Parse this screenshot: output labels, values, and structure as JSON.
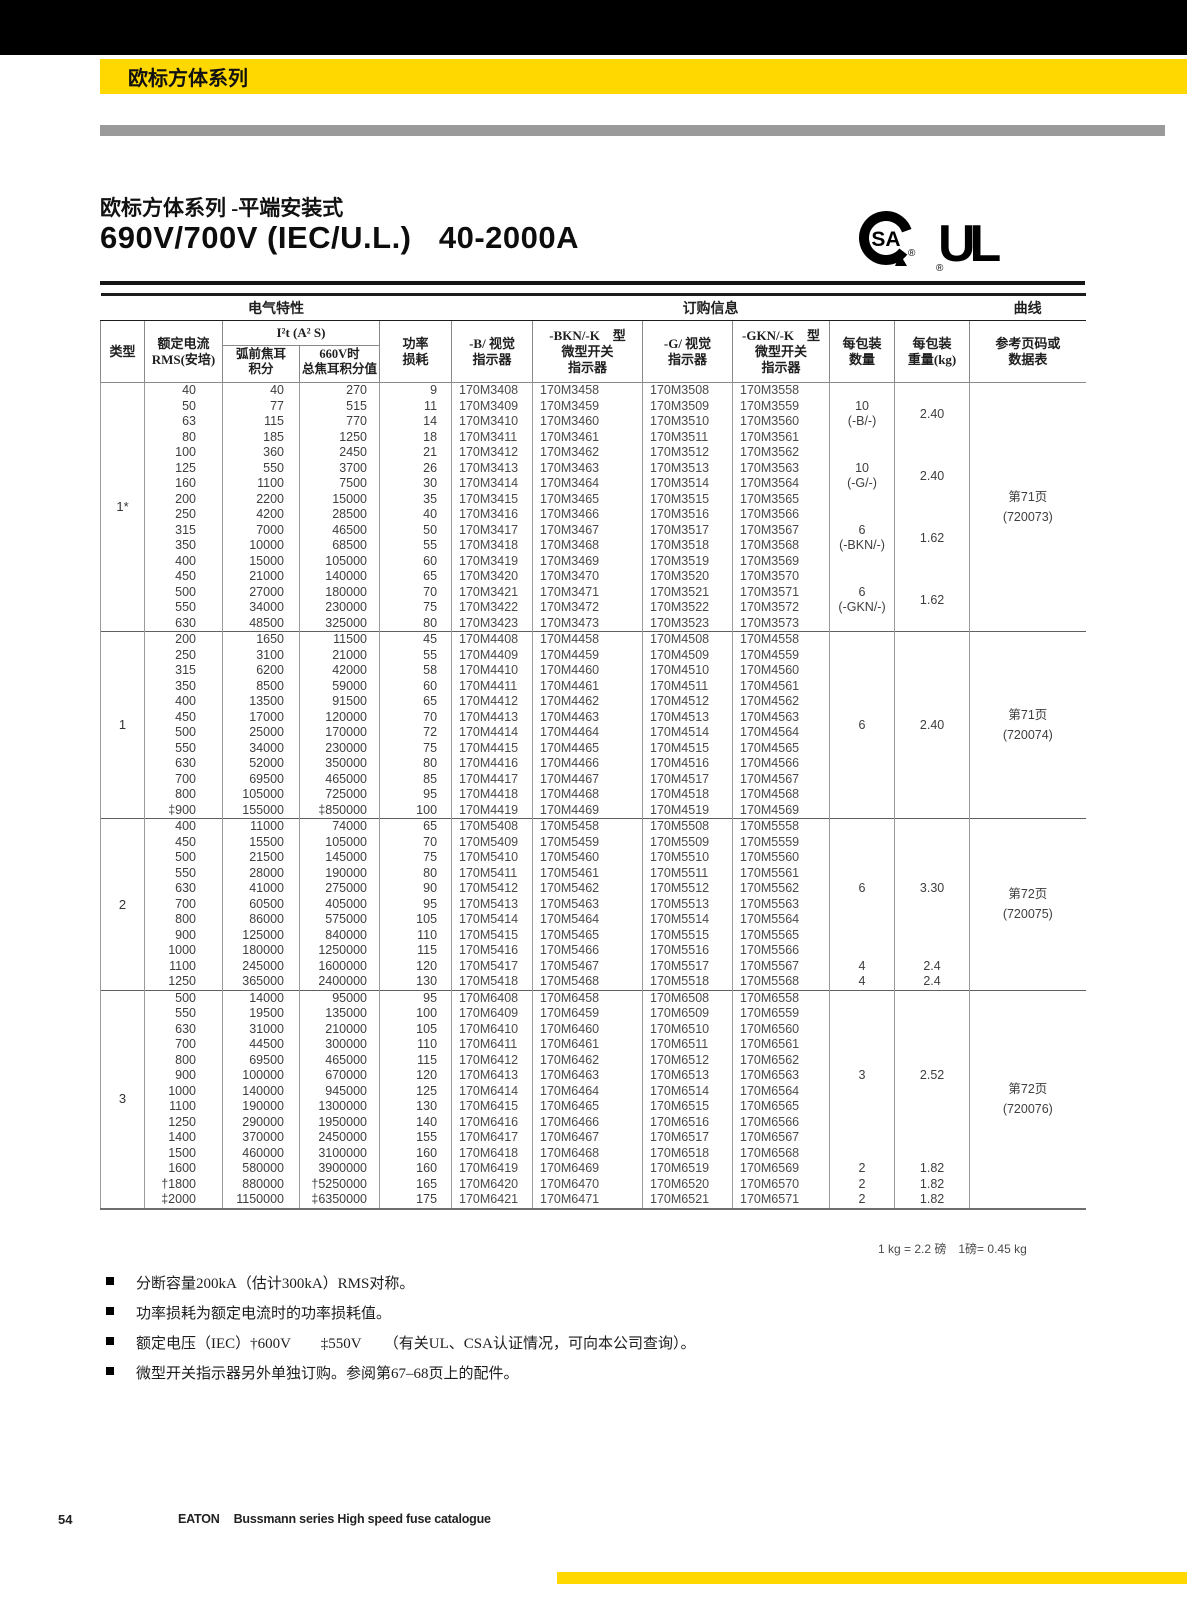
{
  "banner": {
    "series_label": "欧标方体系列"
  },
  "title": {
    "subtitle": "欧标方体系列 -平端安装式",
    "main": "690V/700V (IEC/U.L.)   40-2000A"
  },
  "logos": {
    "csa_text": "SA",
    "ul_text": "UL",
    "registered": "®"
  },
  "table": {
    "group_headers": {
      "electrical": "电气特性",
      "ordering": "订购信息",
      "curve": "曲线"
    },
    "columns": {
      "type": "类型",
      "current": "额定电流\nRMS(安培)",
      "i2t": "I²t (A² S)",
      "i2t_prearc": "弧前焦耳\n积分",
      "i2t_total": "660V时\n总焦耳积分值",
      "power": "功率\n损耗",
      "b": "-B/ 视觉\n指示器",
      "bkn": "-BKN/-K　型\n微型开关\n指示器",
      "g": "-G/ 视觉\n指示器",
      "gkn": "-GKN/-K　型\n微型开关\n指示器",
      "qty": "每包装\n数量",
      "wt": "每包装\n重量(kg)",
      "ref": "参考页码或\n数据表"
    },
    "groups": [
      {
        "type": "1*",
        "rows": [
          [
            "40",
            "40",
            "270",
            "9",
            "170M3408",
            "170M3458",
            "170M3508",
            "170M3558"
          ],
          [
            "50",
            "77",
            "515",
            "11",
            "170M3409",
            "170M3459",
            "170M3509",
            "170M3559"
          ],
          [
            "63",
            "115",
            "770",
            "14",
            "170M3410",
            "170M3460",
            "170M3510",
            "170M3560"
          ],
          [
            "80",
            "185",
            "1250",
            "18",
            "170M3411",
            "170M3461",
            "170M3511",
            "170M3561"
          ],
          [
            "100",
            "360",
            "2450",
            "21",
            "170M3412",
            "170M3462",
            "170M3512",
            "170M3562"
          ],
          [
            "125",
            "550",
            "3700",
            "26",
            "170M3413",
            "170M3463",
            "170M3513",
            "170M3563"
          ],
          [
            "160",
            "1100",
            "7500",
            "30",
            "170M3414",
            "170M3464",
            "170M3514",
            "170M3564"
          ],
          [
            "200",
            "2200",
            "15000",
            "35",
            "170M3415",
            "170M3465",
            "170M3515",
            "170M3565"
          ],
          [
            "250",
            "4200",
            "28500",
            "40",
            "170M3416",
            "170M3466",
            "170M3516",
            "170M3566"
          ],
          [
            "315",
            "7000",
            "46500",
            "50",
            "170M3417",
            "170M3467",
            "170M3517",
            "170M3567"
          ],
          [
            "350",
            "10000",
            "68500",
            "55",
            "170M3418",
            "170M3468",
            "170M3518",
            "170M3568"
          ],
          [
            "400",
            "15000",
            "105000",
            "60",
            "170M3419",
            "170M3469",
            "170M3519",
            "170M3569"
          ],
          [
            "450",
            "21000",
            "140000",
            "65",
            "170M3420",
            "170M3470",
            "170M3520",
            "170M3570"
          ],
          [
            "500",
            "27000",
            "180000",
            "70",
            "170M3421",
            "170M3471",
            "170M3521",
            "170M3571"
          ],
          [
            "550",
            "34000",
            "230000",
            "75",
            "170M3422",
            "170M3472",
            "170M3522",
            "170M3572"
          ],
          [
            "630",
            "48500",
            "325000",
            "80",
            "170M3423",
            "170M3473",
            "170M3523",
            "170M3573"
          ]
        ],
        "packs": [
          {
            "rows": 4,
            "qty": "10\n(-B/-)",
            "wt": "2.40"
          },
          {
            "rows": 4,
            "qty": "10\n(-G/-)",
            "wt": "2.40"
          },
          {
            "rows": 4,
            "qty": "6\n(-BKN/-)",
            "wt": "1.62"
          },
          {
            "rows": 4,
            "qty": "6\n(-GKN/-)",
            "wt": "1.62"
          }
        ],
        "ref": "第71页\n(720073)"
      },
      {
        "type": "1",
        "rows": [
          [
            "200",
            "1650",
            "11500",
            "45",
            "170M4408",
            "170M4458",
            "170M4508",
            "170M4558"
          ],
          [
            "250",
            "3100",
            "21000",
            "55",
            "170M4409",
            "170M4459",
            "170M4509",
            "170M4559"
          ],
          [
            "315",
            "6200",
            "42000",
            "58",
            "170M4410",
            "170M4460",
            "170M4510",
            "170M4560"
          ],
          [
            "350",
            "8500",
            "59000",
            "60",
            "170M4411",
            "170M4461",
            "170M4511",
            "170M4561"
          ],
          [
            "400",
            "13500",
            "91500",
            "65",
            "170M4412",
            "170M4462",
            "170M4512",
            "170M4562"
          ],
          [
            "450",
            "17000",
            "120000",
            "70",
            "170M4413",
            "170M4463",
            "170M4513",
            "170M4563"
          ],
          [
            "500",
            "25000",
            "170000",
            "72",
            "170M4414",
            "170M4464",
            "170M4514",
            "170M4564"
          ],
          [
            "550",
            "34000",
            "230000",
            "75",
            "170M4415",
            "170M4465",
            "170M4515",
            "170M4565"
          ],
          [
            "630",
            "52000",
            "350000",
            "80",
            "170M4416",
            "170M4466",
            "170M4516",
            "170M4566"
          ],
          [
            "700",
            "69500",
            "465000",
            "85",
            "170M4417",
            "170M4467",
            "170M4517",
            "170M4567"
          ],
          [
            "800",
            "105000",
            "725000",
            "95",
            "170M4418",
            "170M4468",
            "170M4518",
            "170M4568"
          ],
          [
            "‡900",
            "155000",
            "‡850000",
            "100",
            "170M4419",
            "170M4469",
            "170M4519",
            "170M4569"
          ]
        ],
        "packs": [
          {
            "rows": 12,
            "qty": "6",
            "wt": "2.40"
          }
        ],
        "ref": "第71页\n(720074)"
      },
      {
        "type": "2",
        "rows": [
          [
            "400",
            "11000",
            "74000",
            "65",
            "170M5408",
            "170M5458",
            "170M5508",
            "170M5558"
          ],
          [
            "450",
            "15500",
            "105000",
            "70",
            "170M5409",
            "170M5459",
            "170M5509",
            "170M5559"
          ],
          [
            "500",
            "21500",
            "145000",
            "75",
            "170M5410",
            "170M5460",
            "170M5510",
            "170M5560"
          ],
          [
            "550",
            "28000",
            "190000",
            "80",
            "170M5411",
            "170M5461",
            "170M5511",
            "170M5561"
          ],
          [
            "630",
            "41000",
            "275000",
            "90",
            "170M5412",
            "170M5462",
            "170M5512",
            "170M5562"
          ],
          [
            "700",
            "60500",
            "405000",
            "95",
            "170M5413",
            "170M5463",
            "170M5513",
            "170M5563"
          ],
          [
            "800",
            "86000",
            "575000",
            "105",
            "170M5414",
            "170M5464",
            "170M5514",
            "170M5564"
          ],
          [
            "900",
            "125000",
            "840000",
            "110",
            "170M5415",
            "170M5465",
            "170M5515",
            "170M5565"
          ],
          [
            "1000",
            "180000",
            "1250000",
            "115",
            "170M5416",
            "170M5466",
            "170M5516",
            "170M5566"
          ],
          [
            "1100",
            "245000",
            "1600000",
            "120",
            "170M5417",
            "170M5467",
            "170M5517",
            "170M5567"
          ],
          [
            "1250",
            "365000",
            "2400000",
            "130",
            "170M5418",
            "170M5468",
            "170M5518",
            "170M5568"
          ]
        ],
        "packs": [
          {
            "rows": 9,
            "qty": "6",
            "wt": "3.30"
          },
          {
            "rows": 1,
            "qty": "4",
            "wt": "2.4"
          },
          {
            "rows": 1,
            "qty": "4",
            "wt": "2.4"
          }
        ],
        "ref": "第72页\n(720075)"
      },
      {
        "type": "3",
        "rows": [
          [
            "500",
            "14000",
            "95000",
            "95",
            "170M6408",
            "170M6458",
            "170M6508",
            "170M6558"
          ],
          [
            "550",
            "19500",
            "135000",
            "100",
            "170M6409",
            "170M6459",
            "170M6509",
            "170M6559"
          ],
          [
            "630",
            "31000",
            "210000",
            "105",
            "170M6410",
            "170M6460",
            "170M6510",
            "170M6560"
          ],
          [
            "700",
            "44500",
            "300000",
            "110",
            "170M6411",
            "170M6461",
            "170M6511",
            "170M6561"
          ],
          [
            "800",
            "69500",
            "465000",
            "115",
            "170M6412",
            "170M6462",
            "170M6512",
            "170M6562"
          ],
          [
            "900",
            "100000",
            "670000",
            "120",
            "170M6413",
            "170M6463",
            "170M6513",
            "170M6563"
          ],
          [
            "1000",
            "140000",
            "945000",
            "125",
            "170M6414",
            "170M6464",
            "170M6514",
            "170M6564"
          ],
          [
            "1100",
            "190000",
            "1300000",
            "130",
            "170M6415",
            "170M6465",
            "170M6515",
            "170M6565"
          ],
          [
            "1250",
            "290000",
            "1950000",
            "140",
            "170M6416",
            "170M6466",
            "170M6516",
            "170M6566"
          ],
          [
            "1400",
            "370000",
            "2450000",
            "155",
            "170M6417",
            "170M6467",
            "170M6517",
            "170M6567"
          ],
          [
            "1500",
            "460000",
            "3100000",
            "160",
            "170M6418",
            "170M6468",
            "170M6518",
            "170M6568"
          ],
          [
            "1600",
            "580000",
            "3900000",
            "160",
            "170M6419",
            "170M6469",
            "170M6519",
            "170M6569"
          ],
          [
            "†1800",
            "880000",
            "†5250000",
            "165",
            "170M6420",
            "170M6470",
            "170M6520",
            "170M6570"
          ],
          [
            "‡2000",
            "1150000",
            "‡6350000",
            "175",
            "170M6421",
            "170M6471",
            "170M6521",
            "170M6571"
          ]
        ],
        "packs": [
          {
            "rows": 11,
            "qty": "3",
            "wt": "2.52"
          },
          {
            "rows": 1,
            "qty": "2",
            "wt": "1.82"
          },
          {
            "rows": 1,
            "qty": "2",
            "wt": "1.82"
          },
          {
            "rows": 1,
            "qty": "2",
            "wt": "1.82"
          }
        ],
        "ref": "第72页\n(720076)"
      }
    ],
    "kg_note": "1 kg = 2.2 磅　1磅= 0.45 kg"
  },
  "notes": [
    "分断容量200kA（估计300kA）RMS对称。",
    "功率损耗为额定电流时的功率损耗值。",
    "额定电压（IEC）†600V　　‡550V　　（有关UL、CSA认证情况，可向本公司查询）。",
    "微型开关指示器另外单独订购。参阅第67–68页上的配件。"
  ],
  "footer": {
    "page_number": "54",
    "brand": "EATON",
    "catalog": "Bussmann series High speed fuse catalogue"
  }
}
